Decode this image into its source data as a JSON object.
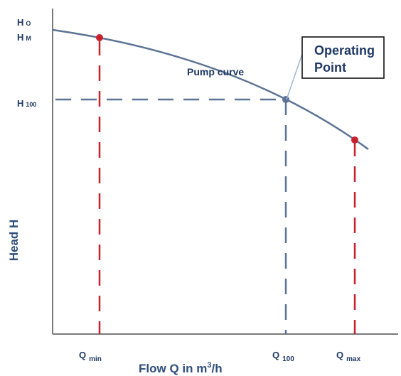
{
  "colors": {
    "axis": "#7a7a7a",
    "curve": "#5b7394",
    "guide_blue": "#5b7394",
    "guide_red": "#c8202c",
    "label_dark": "#1f3864",
    "label_axis": "#2f4e7b",
    "callout_border": "#000000"
  },
  "y_ticks": {
    "h0_main": "H",
    "h0_sub": "O",
    "hm_main": "H",
    "hm_sub": "M",
    "h100_main": "H",
    "h100_sub": "100"
  },
  "x_ticks": {
    "qmin_main": "Q",
    "qmin_sub": "min",
    "q100_main": "Q",
    "q100_sub": "100",
    "qmax_main": "Q",
    "qmax_sub": "max"
  },
  "axes": {
    "ylabel": "Head H",
    "xlabel_prefix": "Flow Q in m",
    "xlabel_sup": "3",
    "xlabel_suffix": "/h"
  },
  "curve_label": "Pump curve",
  "callout": {
    "line1": "Operating",
    "line2": "Point"
  },
  "markers": [
    {
      "name": "qmin-marker",
      "color": "#c8202c"
    },
    {
      "name": "operating-point-marker",
      "color": "#5b7394"
    },
    {
      "name": "qmax-marker",
      "color": "#c8202c"
    }
  ]
}
